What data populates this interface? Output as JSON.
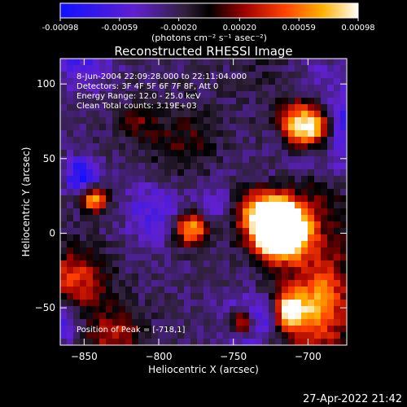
{
  "chart_data": {
    "type": "heatmap",
    "title": "Reconstructed RHESSI Image",
    "xlabel": "Heliocentric X (arcsec)",
    "ylabel": "Heliocentric Y (arcsec)",
    "xlim": [
      -866,
      -674
    ],
    "ylim": [
      -75,
      117
    ],
    "xticks": [
      -850,
      -800,
      -750,
      -700
    ],
    "yticks": [
      -50,
      0,
      50,
      100
    ],
    "colorbar": {
      "ticks": [
        "-0.00098",
        "-0.00059",
        "-0.00020",
        "0.00020",
        "0.00059",
        "0.00098"
      ],
      "unit_label": "(photons cm⁻² s⁻¹ asec⁻²)",
      "range": [
        -0.00098,
        0.00098
      ]
    },
    "annotations": [
      "8-Jun-2004 22:09:28.000 to 22:11:04.000",
      "Detectors: 3F 4F 5F 6F 7F 8F, Att 0",
      "Energy Range: 12.0 - 25.0 keV",
      "Clean     Total counts: 3.19E+03"
    ],
    "peak_label": "Position of Peak = [-718,1]",
    "peak": [
      -718,
      1
    ],
    "grid": false,
    "legend": "none"
  },
  "footer": {
    "timestamp": "27-Apr-2022 21:42"
  }
}
